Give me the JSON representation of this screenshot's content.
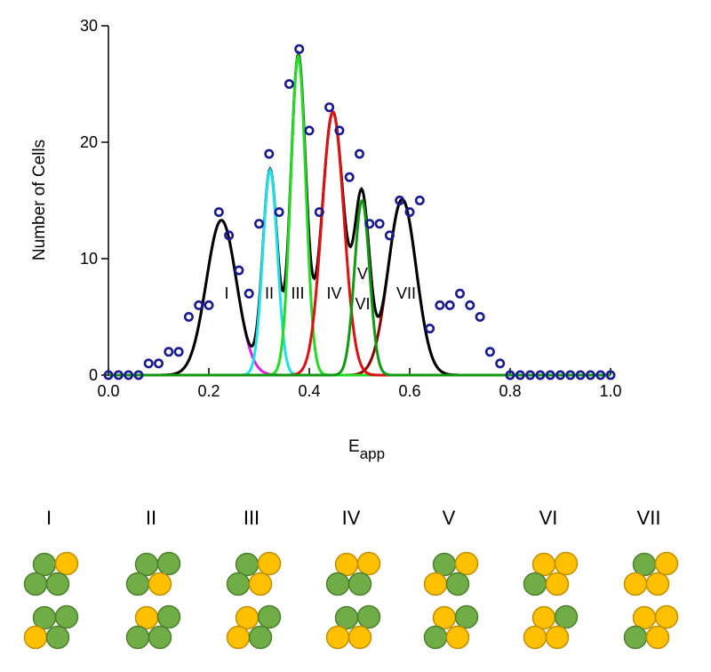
{
  "chart_data": {
    "type": "scatter",
    "xlabel": {
      "main": "E",
      "sub": "app"
    },
    "ylabel": "Number of Cells",
    "xlim": [
      0,
      1
    ],
    "ylim": [
      0,
      30
    ],
    "xticks": [
      {
        "value": 0,
        "label": "0.0"
      },
      {
        "value": 0.2,
        "label": "0.2"
      },
      {
        "value": 0.4,
        "label": "0.4"
      },
      {
        "value": 0.6,
        "label": "0.6"
      },
      {
        "value": 0.8,
        "label": "0.8"
      },
      {
        "value": 1,
        "label": "1.0"
      }
    ],
    "yticks": [
      0,
      10,
      20,
      30
    ],
    "x": [
      0,
      0.02,
      0.04,
      0.06,
      0.08,
      0.1,
      0.12,
      0.14,
      0.16,
      0.18,
      0.2,
      0.22,
      0.24,
      0.26,
      0.28,
      0.3,
      0.32,
      0.34,
      0.36,
      0.38,
      0.4,
      0.42,
      0.44,
      0.46,
      0.48,
      0.5,
      0.52,
      0.54,
      0.56,
      0.58,
      0.6,
      0.62,
      0.64,
      0.66,
      0.68,
      0.7,
      0.72,
      0.74,
      0.76,
      0.78,
      0.8,
      0.82,
      0.84,
      0.86,
      0.88,
      0.9,
      0.92,
      0.94,
      0.96,
      0.98,
      1
    ],
    "values": [
      0,
      0,
      0,
      0,
      1,
      1,
      2,
      2,
      5,
      6,
      6,
      14,
      12,
      9,
      7,
      13,
      19,
      14,
      25,
      28,
      21,
      14,
      23,
      21,
      17,
      19,
      13,
      13,
      12,
      15,
      14,
      15,
      4,
      6,
      6,
      7,
      6,
      5,
      2,
      1,
      0,
      0,
      0,
      0,
      0,
      0,
      0,
      0,
      0,
      0,
      0
    ],
    "marker_color": "#1a1a90",
    "sum_color": "#000000",
    "fits": [
      {
        "color": "#e020e0",
        "mean": 0.225,
        "height": 13.3,
        "sd": 0.03
      },
      {
        "color": "#20e0e8",
        "mean": 0.322,
        "height": 17.6,
        "sd": 0.0145
      },
      {
        "color": "#22dd22",
        "mean": 0.378,
        "height": 27.4,
        "sd": 0.015
      },
      {
        "color": "#e01010",
        "mean": 0.447,
        "height": 22.6,
        "sd": 0.022
      },
      {
        "color": "#119911",
        "mean": 0.505,
        "height": 15,
        "sd": 0.015
      },
      {
        "color": "#8b0000",
        "mean": 0.585,
        "height": 15.1,
        "sd": 0.028
      }
    ],
    "peak_labels": [
      "I",
      "II",
      "III",
      "IV",
      "V",
      "VI",
      "VII"
    ]
  },
  "diagram": {
    "labels": [
      "I",
      "II",
      "III",
      "IV",
      "V",
      "VI",
      "VII"
    ]
  }
}
